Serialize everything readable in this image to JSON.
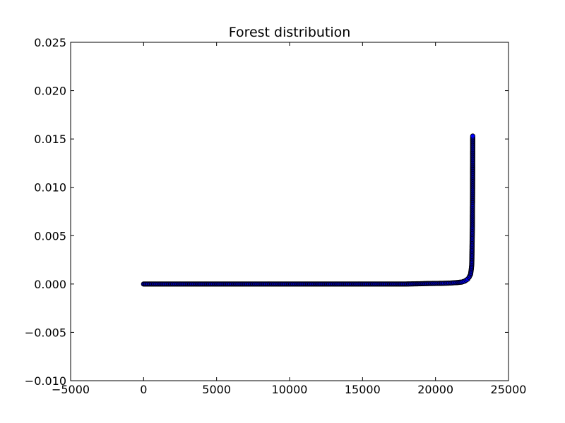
{
  "chart_data": {
    "type": "scatter",
    "title": "Forest distribution",
    "xlabel": "",
    "ylabel": "",
    "xlim": [
      -5000,
      25000
    ],
    "ylim": [
      -0.01,
      0.025
    ],
    "x_ticks": [
      -5000,
      0,
      5000,
      10000,
      15000,
      20000,
      25000
    ],
    "x_tick_labels": [
      "−5000",
      "0",
      "5000",
      "10000",
      "15000",
      "20000",
      "25000"
    ],
    "y_ticks": [
      -0.01,
      -0.005,
      0.0,
      0.005,
      0.01,
      0.015,
      0.02,
      0.025
    ],
    "y_tick_labels": [
      "−0.010",
      "−0.005",
      "0.000",
      "0.005",
      "0.010",
      "0.015",
      "0.020",
      "0.025"
    ],
    "grid": false,
    "marker_color": "#0000ff",
    "marker_edge_color": "#000000",
    "series": [
      {
        "points": [
          [
            0,
            0.0
          ],
          [
            1000,
            0.0
          ],
          [
            2000,
            0.0
          ],
          [
            3000,
            0.0
          ],
          [
            4000,
            0.0
          ],
          [
            5000,
            0.0
          ],
          [
            6000,
            0.0
          ],
          [
            7000,
            0.0
          ],
          [
            8000,
            0.0
          ],
          [
            9000,
            0.0
          ],
          [
            10000,
            0.0
          ],
          [
            11000,
            0.0
          ],
          [
            12000,
            0.0
          ],
          [
            13000,
            0.0
          ],
          [
            14000,
            0.0
          ],
          [
            15000,
            0.0
          ],
          [
            16000,
            0.0
          ],
          [
            17000,
            0.0
          ],
          [
            18000,
            0.0
          ],
          [
            18700,
            2e-05
          ],
          [
            19500,
            5e-05
          ],
          [
            20500,
            7e-05
          ],
          [
            21000,
            0.0001
          ],
          [
            21500,
            0.00015
          ],
          [
            21800,
            0.0002
          ],
          [
            22000,
            0.0003
          ],
          [
            22200,
            0.0005
          ],
          [
            22300,
            0.0007
          ],
          [
            22400,
            0.001
          ],
          [
            22450,
            0.0015
          ],
          [
            22480,
            0.002
          ],
          [
            22490,
            0.0025
          ],
          [
            22495,
            0.003
          ],
          [
            22500,
            0.0035
          ],
          [
            22505,
            0.004
          ],
          [
            22510,
            0.0045
          ],
          [
            22515,
            0.005
          ],
          [
            22520,
            0.0055
          ],
          [
            22525,
            0.006
          ],
          [
            22530,
            0.0078
          ],
          [
            22535,
            0.0084
          ],
          [
            22540,
            0.0095
          ],
          [
            22545,
            0.0126
          ],
          [
            22550,
            0.0153
          ]
        ]
      }
    ]
  }
}
